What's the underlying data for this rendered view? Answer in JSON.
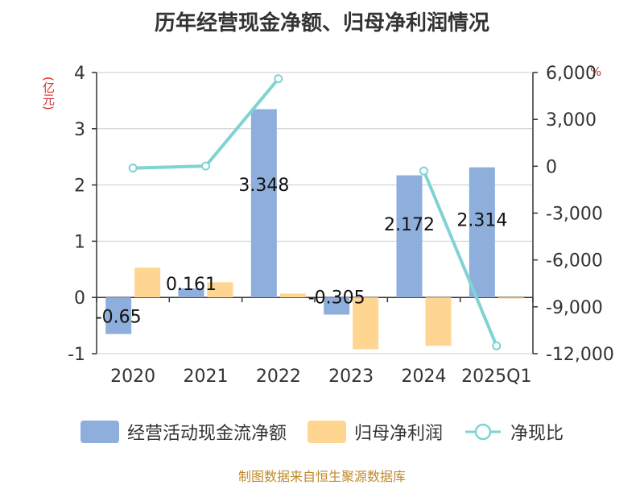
{
  "title": "历年经营现金净额、归母净利润情况",
  "left_axis_unit": "(亿元)",
  "right_axis_unit": "%",
  "source": "制图数据来自恒生聚源数据库",
  "colors": {
    "cash_flow": "#8eaedb",
    "net_profit": "#ffd592",
    "ratio": "#7fd3d4"
  },
  "chart_data": {
    "type": "bar",
    "categories": [
      "2020",
      "2021",
      "2022",
      "2023",
      "2024",
      "2025Q1"
    ],
    "series": [
      {
        "name": "经营活动现金流净额",
        "type": "bar",
        "axis": "left",
        "values": [
          -0.65,
          0.161,
          3.348,
          -0.305,
          2.172,
          2.314
        ],
        "labels": [
          "-0.65",
          "0.161",
          "3.348",
          "-0.305",
          "2.172",
          "2.314"
        ]
      },
      {
        "name": "归母净利润",
        "type": "bar",
        "axis": "left",
        "values": [
          0.53,
          0.27,
          0.07,
          -0.92,
          -0.86,
          -0.02
        ]
      },
      {
        "name": "净现比",
        "type": "line",
        "axis": "right",
        "values": [
          -120,
          10,
          5600,
          null,
          -300,
          -11500
        ]
      }
    ],
    "left_axis": {
      "ylim": [
        -1,
        4
      ],
      "ticks": [
        "-1",
        "0",
        "1",
        "2",
        "3",
        "4"
      ]
    },
    "right_axis": {
      "ylim": [
        -12000,
        6000
      ],
      "ticks": [
        "-12,000",
        "-9,000",
        "-6,000",
        "-3,000",
        "0",
        "3,000",
        "6,000"
      ]
    },
    "legend": [
      "经营活动现金流净额",
      "归母净利润",
      "净现比"
    ],
    "legend_position": "bottom"
  }
}
